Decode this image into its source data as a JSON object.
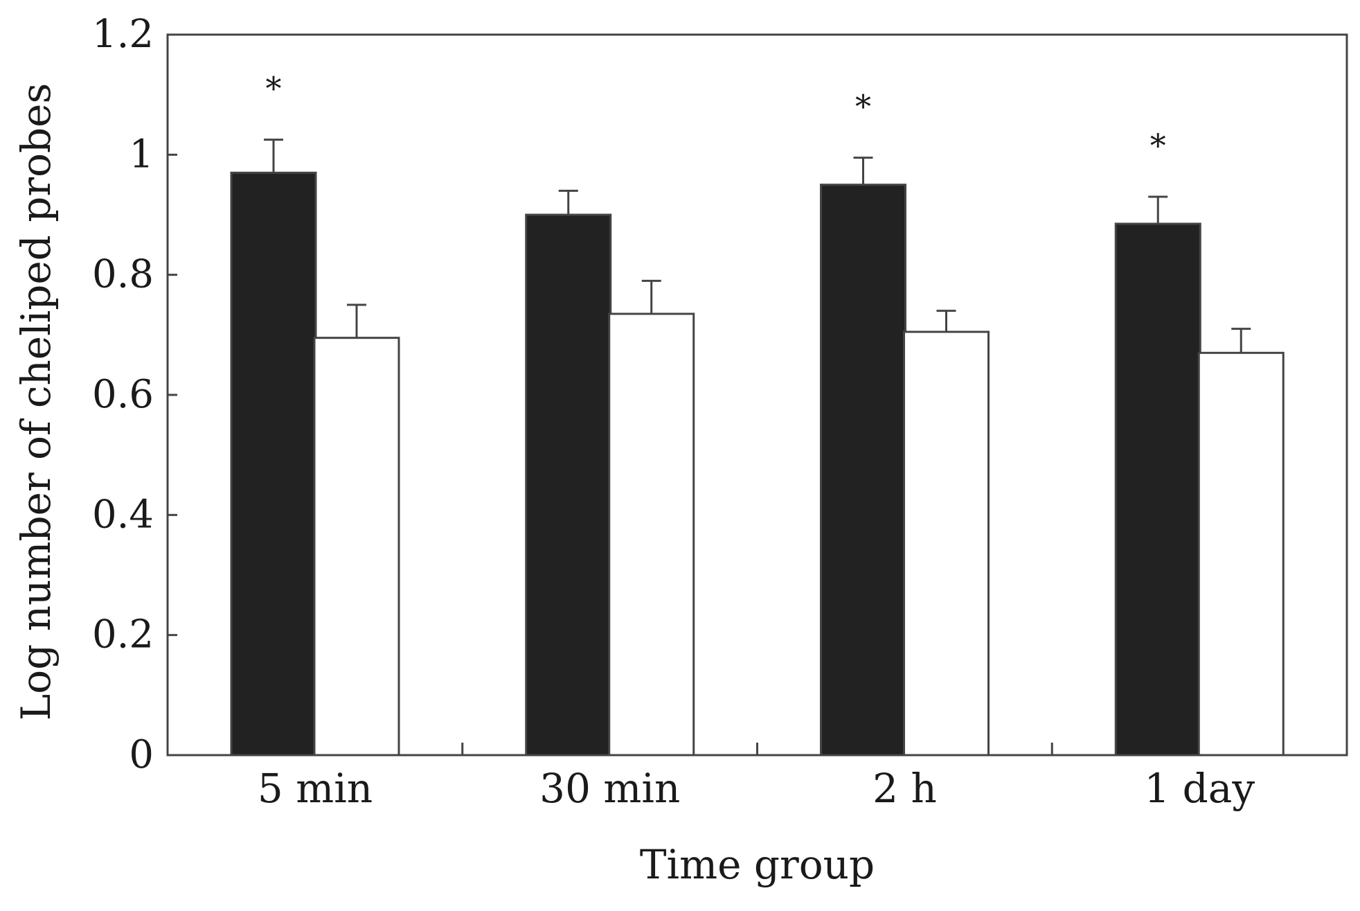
{
  "chart_data": {
    "type": "bar",
    "title": "",
    "xlabel": "Time group",
    "ylabel": "Log number of cheliped probes",
    "categories": [
      "5 min",
      "30 min",
      "2 h",
      "1 day"
    ],
    "ylim": [
      0,
      1.2
    ],
    "yticks": [
      0,
      0.2,
      0.4,
      0.6,
      0.8,
      1,
      1.2
    ],
    "ytick_labels": [
      "0",
      "0.2",
      "0.4",
      "0.6",
      "0.8",
      "1",
      "1.2"
    ],
    "grid": false,
    "legend": "none",
    "series": [
      {
        "name": "filled",
        "color": "#222222",
        "values": [
          0.97,
          0.9,
          0.95,
          0.885
        ],
        "errors": [
          0.055,
          0.04,
          0.045,
          0.045
        ]
      },
      {
        "name": "open",
        "color": "#ffffff",
        "values": [
          0.695,
          0.735,
          0.705,
          0.67
        ],
        "errors": [
          0.055,
          0.055,
          0.035,
          0.04
        ]
      }
    ],
    "annotations": [
      {
        "category": "5 min",
        "text": "*"
      },
      {
        "category": "2 h",
        "text": "*"
      },
      {
        "category": "1 day",
        "text": "*"
      }
    ]
  }
}
